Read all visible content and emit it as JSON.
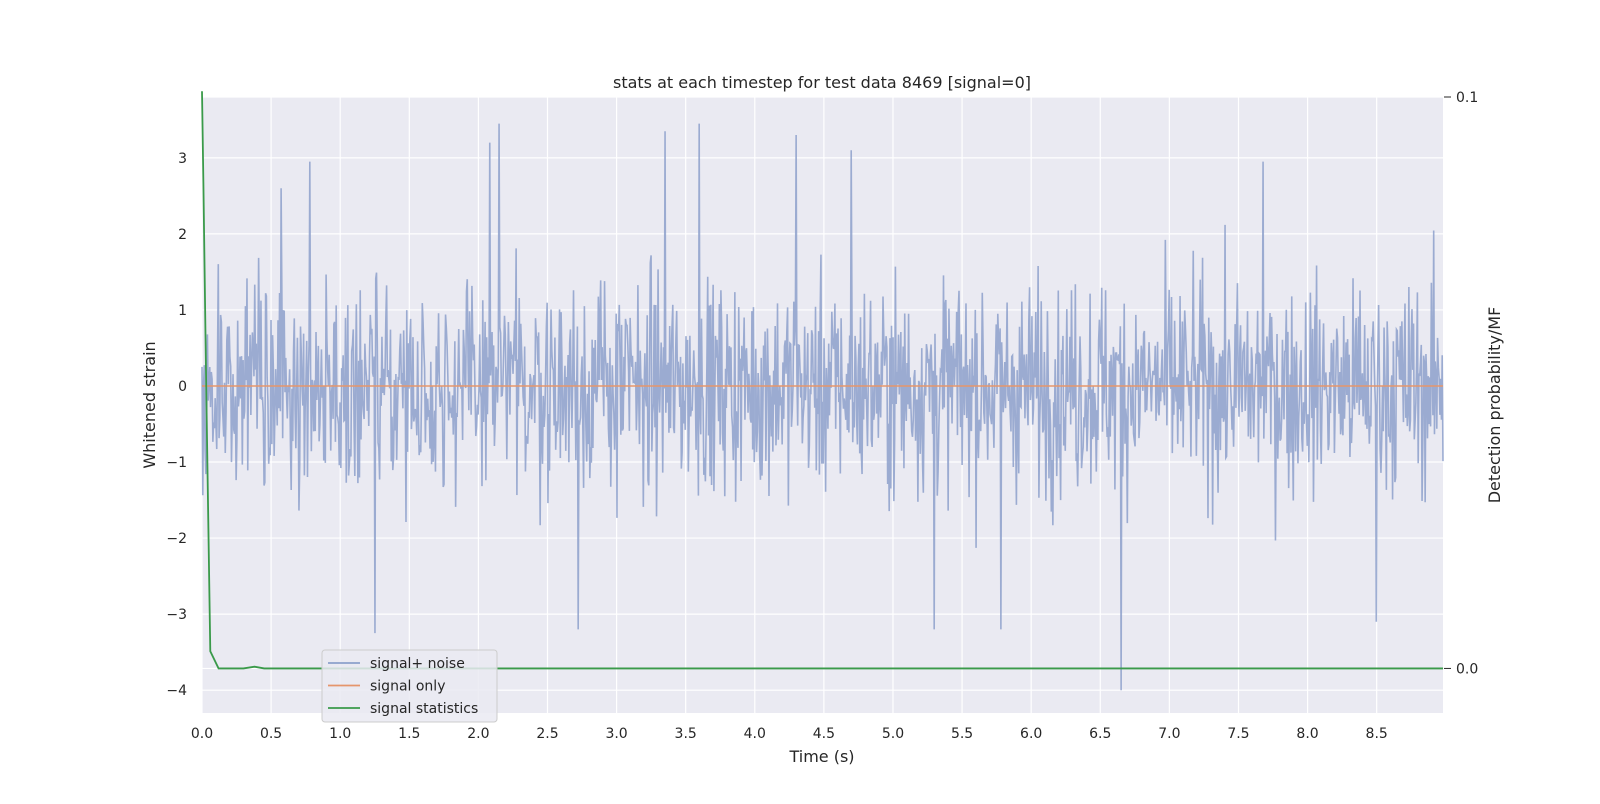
{
  "chart_data": {
    "type": "line",
    "title": "stats at each timestep for test data 8469 [signal=0]",
    "xlabel": "Time (s)",
    "ylabel": "Whitened strain",
    "y2label": "Detection probability/MF",
    "xlim": [
      0.0,
      8.98
    ],
    "ylim": [
      -4.3,
      3.8
    ],
    "y2lim": [
      -0.0078,
      0.1
    ],
    "xticks": [
      0.0,
      0.5,
      1.0,
      1.5,
      2.0,
      2.5,
      3.0,
      3.5,
      4.0,
      4.5,
      5.0,
      5.5,
      6.0,
      6.5,
      7.0,
      7.5,
      8.0,
      8.5
    ],
    "xtick_labels": [
      "0.0",
      "0.5",
      "1.0",
      "1.5",
      "2.0",
      "2.5",
      "3.0",
      "3.5",
      "4.0",
      "4.5",
      "5.0",
      "5.5",
      "6.0",
      "6.5",
      "7.0",
      "7.5",
      "8.0",
      "8.5"
    ],
    "yticks": [
      3,
      2,
      1,
      0,
      -1,
      -2,
      -3,
      -4
    ],
    "ytick_labels": [
      "3",
      "2",
      "1",
      "0",
      "−1",
      "−2",
      "−3",
      "−4"
    ],
    "y2ticks": [
      0.1,
      0.0
    ],
    "y2tick_labels": [
      "0.1",
      "0.0"
    ],
    "grid": true,
    "legend_position": "lower-left",
    "series": [
      {
        "name": "signal+ noise",
        "axis": "left",
        "color": "#8da0cb",
        "description_stats": {
          "min": -4.0,
          "max": 3.45,
          "approx_envelope": [
            -2.3,
            2.5
          ]
        },
        "peaks": [
          {
            "x": 0.57,
            "y": 2.6
          },
          {
            "x": 0.78,
            "y": 2.95
          },
          {
            "x": 1.25,
            "y": -3.25
          },
          {
            "x": 2.08,
            "y": 3.2
          },
          {
            "x": 2.15,
            "y": 3.45
          },
          {
            "x": 2.72,
            "y": -3.2
          },
          {
            "x": 3.35,
            "y": 3.35
          },
          {
            "x": 3.6,
            "y": 3.45
          },
          {
            "x": 4.3,
            "y": 3.3
          },
          {
            "x": 4.7,
            "y": 3.1
          },
          {
            "x": 5.3,
            "y": -3.2
          },
          {
            "x": 5.78,
            "y": -3.2
          },
          {
            "x": 6.65,
            "y": -4.0
          },
          {
            "x": 7.68,
            "y": 2.95
          },
          {
            "x": 8.5,
            "y": -3.1
          }
        ]
      },
      {
        "name": "signal only",
        "axis": "left",
        "color": "#e5956b",
        "x": [
          0.0,
          8.98
        ],
        "y": [
          0.0,
          0.0
        ]
      },
      {
        "name": "signal statistics",
        "axis": "right",
        "color": "#3a9a4a",
        "x": [
          0.0,
          0.01,
          0.03,
          0.06,
          0.12,
          0.2,
          0.3,
          0.38,
          0.45,
          1.0,
          2.0,
          4.0,
          6.0,
          8.0,
          8.98
        ],
        "y": [
          0.101,
          0.085,
          0.05,
          0.003,
          0.0,
          0.0,
          0.0,
          0.0003,
          0.0,
          0.0,
          0.0,
          0.0,
          0.0,
          0.0,
          0.0
        ]
      }
    ]
  }
}
